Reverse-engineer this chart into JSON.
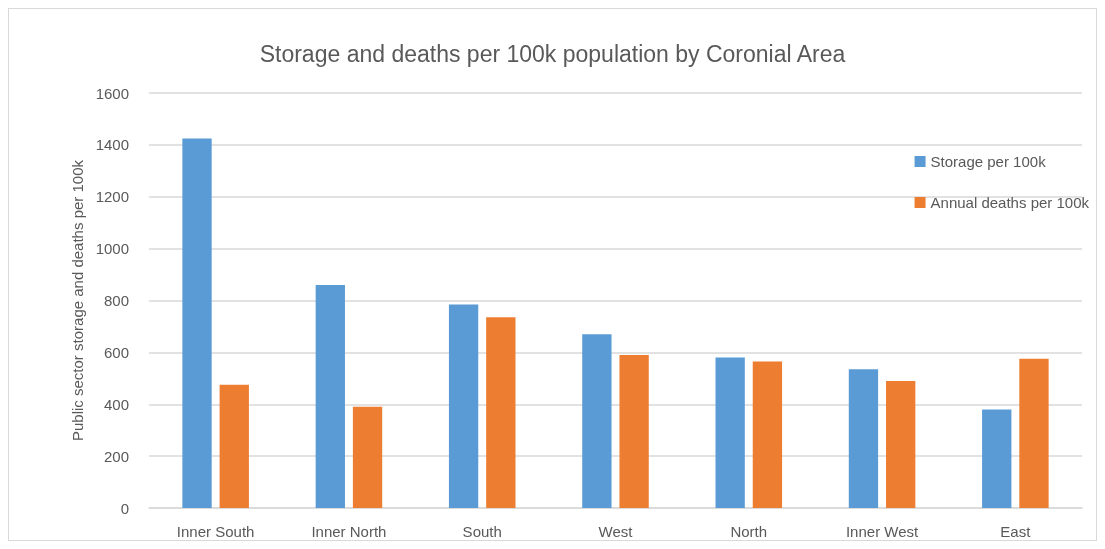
{
  "chart_data": {
    "type": "bar",
    "title": "Storage and deaths per 100k population by Coronial Area",
    "ylabel": "Public sector storage and deaths per 100k",
    "categories": [
      "Inner South",
      "Inner North",
      "South",
      "West",
      "North",
      "Inner West",
      "East"
    ],
    "series": [
      {
        "name": "Storage per 100k",
        "color": "#5b9bd5",
        "values": [
          1425,
          860,
          785,
          670,
          580,
          535,
          380
        ]
      },
      {
        "name": "Annual deaths per 100k",
        "color": "#ed7d31",
        "values": [
          475,
          390,
          735,
          590,
          565,
          490,
          575
        ]
      }
    ],
    "ylim": [
      0,
      1600
    ],
    "yticks": [
      0,
      200,
      400,
      600,
      800,
      1000,
      1200,
      1400,
      1600
    ],
    "grid": "y",
    "legend": "top right"
  }
}
